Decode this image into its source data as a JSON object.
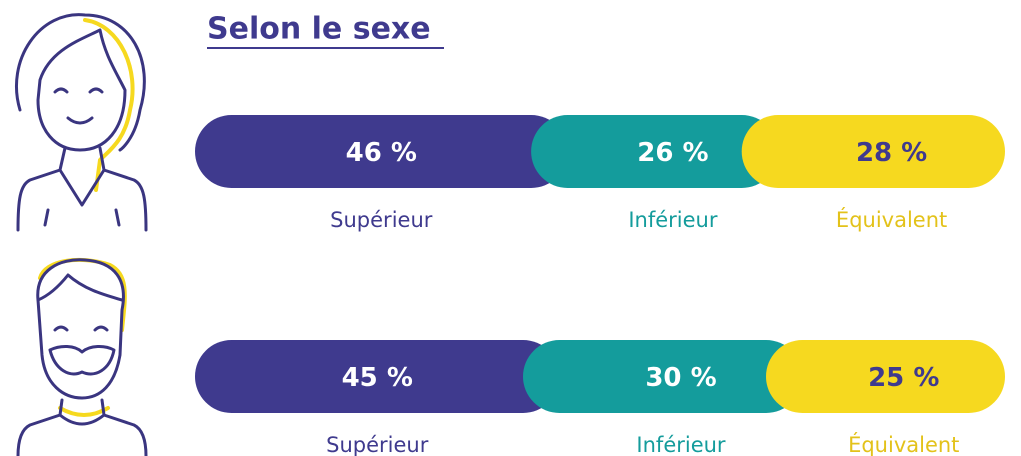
{
  "chart_data": {
    "type": "stacked-bar",
    "title": "Selon le sexe",
    "series": [
      {
        "name": "Supérieur",
        "color": "#3f3a8e",
        "values": [
          46,
          45
        ],
        "value_labels": [
          "46 %",
          "45 %"
        ]
      },
      {
        "name": "Inférieur",
        "color": "#149c9c",
        "values": [
          26,
          30
        ],
        "value_labels": [
          "26 %",
          "30 %"
        ]
      },
      {
        "name": "Équivalent",
        "color": "#f6d91f",
        "values": [
          28,
          25
        ],
        "value_labels": [
          "28 %",
          "25 %"
        ]
      }
    ],
    "xlim": [
      0,
      100
    ]
  }
}
